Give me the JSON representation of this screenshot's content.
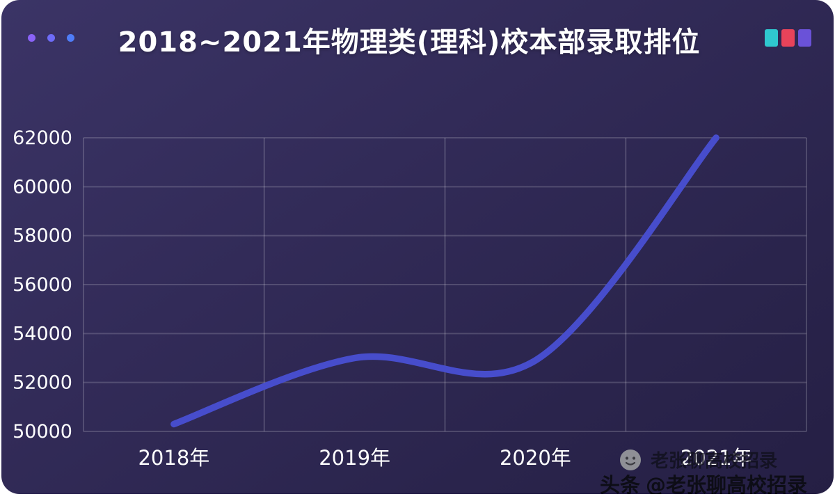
{
  "header": {
    "title": "2018~2021年物理类(理科)校本部录取排位"
  },
  "chart_data": {
    "type": "line",
    "title": "2018~2021年物理类(理科)校本部录取排位",
    "categories": [
      "2018年",
      "2019年",
      "2020年",
      "2021年"
    ],
    "values": [
      50300,
      53000,
      52900,
      62000
    ],
    "ylim": [
      50000,
      62000
    ],
    "yticks": [
      50000,
      52000,
      54000,
      56000,
      58000,
      60000,
      62000
    ],
    "grid": true,
    "legend": "none",
    "line_color": "#474dcc",
    "label_color": "#ffffff",
    "grid_color": "rgba(255,255,255,0.17)"
  },
  "decor": {
    "dot_colors": [
      "#8a63f8",
      "#6e6cf8",
      "#4f7df8"
    ],
    "square_colors": [
      "#2fc8cf",
      "#e8435a",
      "#6a52d8"
    ]
  },
  "watermark": {
    "name": "老张聊高校招录",
    "brand": "头条",
    "handle": "@老张聊高校招录"
  }
}
